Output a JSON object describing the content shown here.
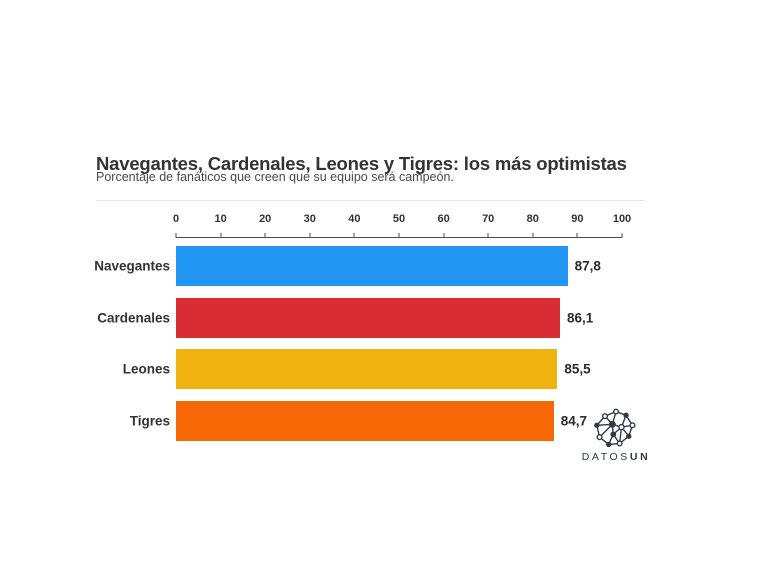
{
  "header": {
    "title": "Navegantes, Cardenales, Leones y Tigres: los más optimistas",
    "subtitle": "Porcentaje de fanáticos que creen que su equipo será campeón."
  },
  "chart_data": {
    "type": "bar",
    "orientation": "horizontal",
    "title": "Navegantes, Cardenales, Leones y Tigres: los más optimistas",
    "subtitle": "Porcentaje de fanáticos que creen que su equipo será campeón.",
    "categories": [
      "Navegantes",
      "Cardenales",
      "Leones",
      "Tigres"
    ],
    "values": [
      87.8,
      86.1,
      85.5,
      84.7
    ],
    "value_labels": [
      "87,8",
      "86,1",
      "85,5",
      "84,7"
    ],
    "bar_colors": [
      "#2196F3",
      "#DA2C34",
      "#F0B310",
      "#F76706"
    ],
    "x_ticks": [
      0,
      10,
      20,
      30,
      40,
      50,
      60,
      70,
      80,
      90,
      100
    ],
    "xlim": [
      0,
      100
    ],
    "xlabel": "",
    "ylabel": "",
    "grid": false,
    "legend": "none",
    "axis_position": "top"
  },
  "branding": {
    "logo_icon": "network-graph-icon",
    "logo_text_regular": "DATOS",
    "logo_text_bold": "UN"
  },
  "colors": {
    "background": "#ffffff",
    "title_text": "#333333",
    "subtitle_text": "#4a4a4a",
    "axis_text": "#333333",
    "axis_line": "#4d4d4d",
    "divider": "#e6e6e6",
    "logo": "#2e3a47"
  }
}
